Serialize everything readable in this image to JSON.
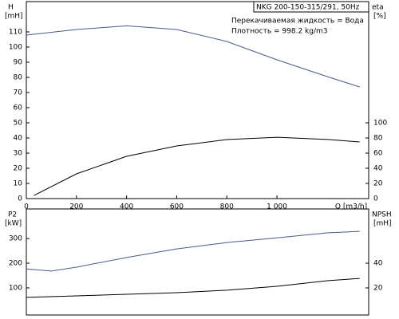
{
  "chart_data": [
    {
      "type": "line",
      "title": "NKG 200-150-315/291, 50Hz",
      "annotations": [
        "Перекачиваемая жидкость = Вода",
        "Плотность = 998.2 kg/m3"
      ],
      "ylabel": "H",
      "yunit": "[mH]",
      "y2label": "eta",
      "y2unit": "[%]",
      "xlabel": "Q [m3/h]",
      "xlim": [
        0,
        1366
      ],
      "xticks": [
        0,
        200,
        400,
        600,
        800,
        {
          "value": 1000,
          "label": "1 000"
        }
      ],
      "ylim": [
        0,
        130
      ],
      "yticks": [
        0,
        10,
        20,
        30,
        40,
        50,
        60,
        70,
        80,
        90,
        100,
        110
      ],
      "y2lim": [
        0,
        260
      ],
      "y2ticks": [
        0,
        20,
        40,
        60,
        80,
        100
      ],
      "series": [
        {
          "name": "H",
          "color": "#4a5a8a",
          "x": [
            0,
            200,
            400,
            600,
            800,
            1000,
            1200,
            1330
          ],
          "values": [
            107.9,
            111.6,
            114,
            111.6,
            103.7,
            91.6,
            80.5,
            73.7
          ]
        },
        {
          "name": "eta",
          "color": "#000000",
          "axis": "y2",
          "x": [
            30,
            200,
            400,
            600,
            800,
            1000,
            1200,
            1330
          ],
          "values": [
            4,
            32.6,
            55.8,
            69.5,
            77.9,
            81,
            78,
            74.7
          ]
        }
      ]
    },
    {
      "type": "line",
      "ylabel": "P2",
      "yunit": "[kW]",
      "y2label": "NPSH",
      "y2unit": "[mH]",
      "xlim": [
        0,
        1366
      ],
      "ylim": [
        -10,
        420
      ],
      "yticks": [
        100,
        200,
        300
      ],
      "y2lim": [
        -2,
        84
      ],
      "y2ticks": [
        20,
        40
      ],
      "series": [
        {
          "name": "P2",
          "color": "#4a5a8a",
          "x": [
            0,
            100,
            200,
            400,
            600,
            800,
            1000,
            1200,
            1330
          ],
          "values": [
            177,
            168,
            184,
            223,
            258,
            284,
            303,
            323,
            329
          ]
        },
        {
          "name": "NPSH",
          "color": "#000000",
          "axis": "y2",
          "x": [
            0,
            200,
            400,
            600,
            800,
            1000,
            1200,
            1330
          ],
          "values": [
            12.3,
            13.5,
            14.8,
            16.1,
            18.1,
            21.3,
            25.8,
            27.7
          ]
        }
      ]
    }
  ]
}
